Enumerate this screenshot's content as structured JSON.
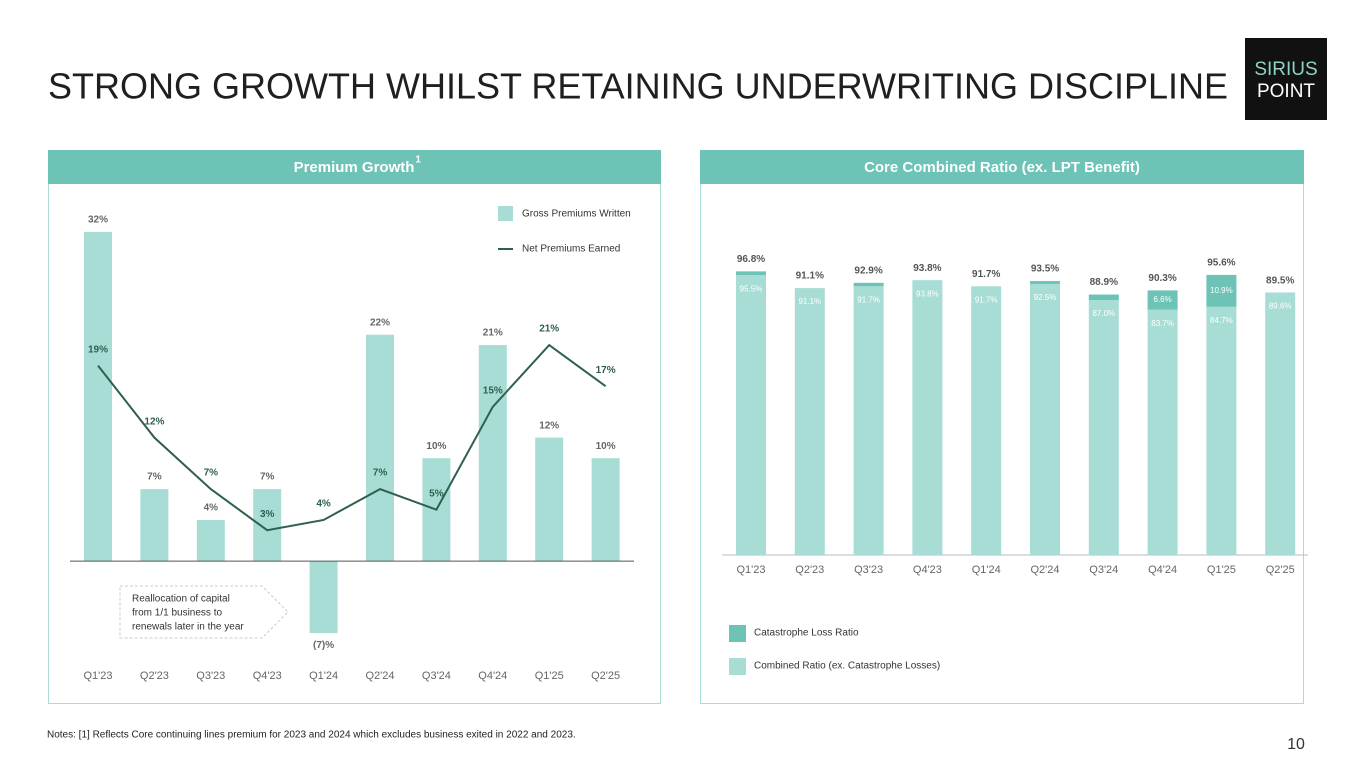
{
  "title": "STRONG GROWTH WHILST RETAINING UNDERWRITING DISCIPLINE",
  "logo": {
    "line1": "SIRIUS",
    "line2": "POINT"
  },
  "notes": "Notes: [1] Reflects Core continuing lines premium for 2023 and 2024 which excludes business exited in 2022 and 2023.",
  "page_number": "10",
  "chart_data": [
    {
      "type": "combo",
      "title": "Premium Growth",
      "title_note": "1",
      "categories": [
        "Q1'23",
        "Q2'23",
        "Q3'23",
        "Q4'23",
        "Q1'24",
        "Q2'24",
        "Q3'24",
        "Q4'24",
        "Q1'25",
        "Q2'25"
      ],
      "series": [
        {
          "name": "Gross Premiums Written",
          "type": "bar",
          "color": "#a7ddd5",
          "values": [
            32,
            7,
            4,
            7,
            -7,
            22,
            10,
            21,
            12,
            10
          ],
          "value_labels": [
            "32%",
            "7%",
            "4%",
            "7%",
            "(7)%",
            "22%",
            "10%",
            "21%",
            "12%",
            "10%"
          ]
        },
        {
          "name": "Net Premiums Earned",
          "type": "line",
          "color": "#2f5f50",
          "values": [
            19,
            12,
            7,
            3,
            4,
            7,
            5,
            15,
            21,
            17
          ],
          "value_labels": [
            "19%",
            "12%",
            "7%",
            "3%",
            "4%",
            "7%",
            "5%",
            "15%",
            "21%",
            "17%"
          ]
        }
      ],
      "ylim": [
        -10,
        35
      ],
      "annotation": [
        "Reallocation of capital",
        "from 1/1 business to",
        "renewals later in the year"
      ]
    },
    {
      "type": "stacked_bar",
      "title": "Core Combined Ratio (ex. LPT Benefit)",
      "categories": [
        "Q1'23",
        "Q2'23",
        "Q3'23",
        "Q4'23",
        "Q1'24",
        "Q2'24",
        "Q3'24",
        "Q4'24",
        "Q1'25",
        "Q2'25"
      ],
      "series": [
        {
          "name": "Combined Ratio (ex. Catastrophe Losses)",
          "color": "#a7ddd5",
          "values": [
            95.5,
            91.1,
            91.7,
            93.8,
            91.7,
            92.5,
            87.0,
            83.7,
            84.7,
            89.6
          ],
          "value_labels": [
            "95.5%",
            "91.1%",
            "91.7%",
            "93.8%",
            "91.7%",
            "92.5%",
            "87.0%",
            "83.7%",
            "84.7%",
            "89.6%"
          ]
        },
        {
          "name": "Catastrophe Loss Ratio",
          "color": "#6cc3b6",
          "values": [
            1.3,
            0,
            1.2,
            0,
            0,
            1.0,
            1.9,
            6.6,
            10.9,
            0
          ],
          "value_labels": [
            null,
            null,
            null,
            null,
            null,
            null,
            null,
            "6.6%",
            "10.9%",
            null
          ]
        }
      ],
      "totals": {
        "values": [
          96.8,
          91.1,
          92.9,
          93.8,
          91.7,
          93.5,
          88.9,
          90.3,
          95.6,
          89.5
        ],
        "value_labels": [
          "96.8%",
          "91.1%",
          "92.9%",
          "93.8%",
          "91.7%",
          "93.5%",
          "88.9%",
          "90.3%",
          "95.6%",
          "89.5%"
        ]
      },
      "ylim": [
        0,
        100
      ]
    }
  ]
}
